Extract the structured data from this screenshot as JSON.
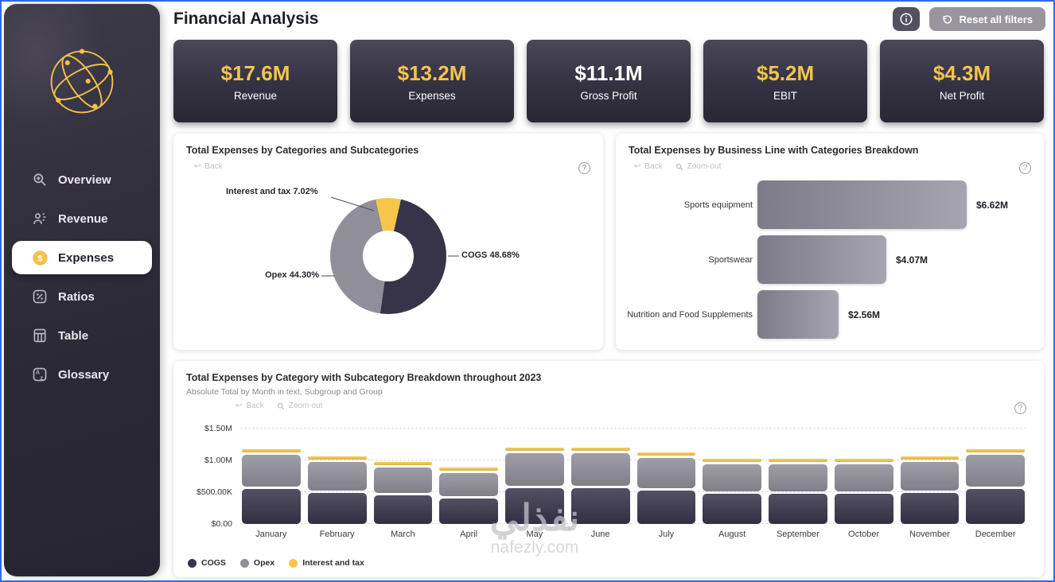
{
  "header": {
    "title": "Financial Analysis",
    "reset_button_label": "Reset all filters"
  },
  "sidebar": {
    "items": [
      {
        "label": "Overview",
        "icon": "search-icon",
        "selected": false
      },
      {
        "label": "Revenue",
        "icon": "revenue-icon",
        "selected": false
      },
      {
        "label": "Expenses",
        "icon": "dollar-icon",
        "selected": true
      },
      {
        "label": "Ratios",
        "icon": "percent-icon",
        "selected": false
      },
      {
        "label": "Table",
        "icon": "table-icon",
        "selected": false
      },
      {
        "label": "Glossary",
        "icon": "glossary-icon",
        "selected": false
      }
    ]
  },
  "kpis": [
    {
      "value": "$17.6M",
      "label": "Revenue",
      "value_color": "#F5C44C"
    },
    {
      "value": "$13.2M",
      "label": "Expenses",
      "value_color": "#F5C44C"
    },
    {
      "value": "$11.1M",
      "label": "Gross Profit",
      "value_color": "#FFFFFF"
    },
    {
      "value": "$5.2M",
      "label": "EBIT",
      "value_color": "#F5C44C"
    },
    {
      "value": "$4.3M",
      "label": "Net Profit",
      "value_color": "#F5C44C"
    }
  ],
  "panels": {
    "donut": {
      "title": "Total Expenses by Categories and Subcategories",
      "back_label": "Back"
    },
    "business": {
      "title": "Total Expenses by Business Line with Categories Breakdown",
      "back_label": "Back",
      "zoomout_label": "Zoom-out"
    },
    "monthly": {
      "title": "Total Expenses by Category with Subcategory Breakdown throughout 2023",
      "subtitle": "Absolute Total by Month in text, Subgroup and Group",
      "back_label": "Back",
      "zoomout_label": "Zoom-out"
    }
  },
  "colors": {
    "accent_yellow": "#F5C44C",
    "cogs": "#37344A",
    "opex": "#8F8E99",
    "interest": "#F6C64A",
    "frame_blue": "#2F6BF0",
    "sidebar_dark": "#2D2A37"
  },
  "watermark": {
    "arabic": "نفذلي",
    "site": "nafezly.com"
  },
  "chart_data": [
    {
      "type": "pie",
      "title": "Total Expenses by Categories and Subcategories",
      "labels": [
        "COGS",
        "Opex",
        "Interest and tax"
      ],
      "values": [
        48.68,
        44.3,
        7.02
      ],
      "unit": "%",
      "colors": [
        "#37344A",
        "#8F8E99",
        "#F6C64A"
      ],
      "annotations": [
        "COGS 48.68%",
        "Opex 44.30%",
        "Interest and tax 7.02%"
      ],
      "draw_order": [
        2,
        0,
        1
      ],
      "start_angle_deg": -12.6,
      "hole": true
    },
    {
      "type": "bar",
      "orientation": "horizontal",
      "title": "Total Expenses by Business Line with Categories Breakdown",
      "categories": [
        "Sports equipment",
        "Sportswear",
        "Nutrition and Food Supplements"
      ],
      "values": [
        6.62,
        4.07,
        2.56
      ],
      "value_labels": [
        "$6.62M",
        "$4.07M",
        "$2.56M"
      ],
      "unit": "USD millions"
    },
    {
      "type": "bar",
      "stacked": true,
      "title": "Total Expenses by Category with Subcategory Breakdown throughout 2023",
      "categories": [
        "January",
        "February",
        "March",
        "April",
        "May",
        "June",
        "July",
        "August",
        "September",
        "October",
        "November",
        "December"
      ],
      "series": [
        {
          "name": "COGS",
          "color": "#37344A",
          "values": [
            589,
            531,
            482,
            438,
            604,
            604,
            560,
            511,
            511,
            511,
            531,
            589
          ]
        },
        {
          "name": "Opex",
          "color": "#8F8E99",
          "values": [
            536,
            483,
            439,
            399,
            549,
            549,
            509,
            465,
            465,
            465,
            483,
            536
          ]
        },
        {
          "name": "Interest and tax",
          "color": "#F6C64A",
          "values": [
            85,
            77,
            69,
            63,
            87,
            87,
            81,
            74,
            74,
            74,
            77,
            85
          ]
        }
      ],
      "unit": "USD thousands",
      "ylim": [
        0,
        1500
      ],
      "yticks": [
        {
          "label": "$0.00",
          "value": 0
        },
        {
          "label": "$500.00K",
          "value": 500
        },
        {
          "label": "$1.00M",
          "value": 1000
        },
        {
          "label": "$1.50M",
          "value": 1500
        }
      ],
      "grid": "dashed horizontal",
      "legend_position": "bottom-left"
    }
  ]
}
